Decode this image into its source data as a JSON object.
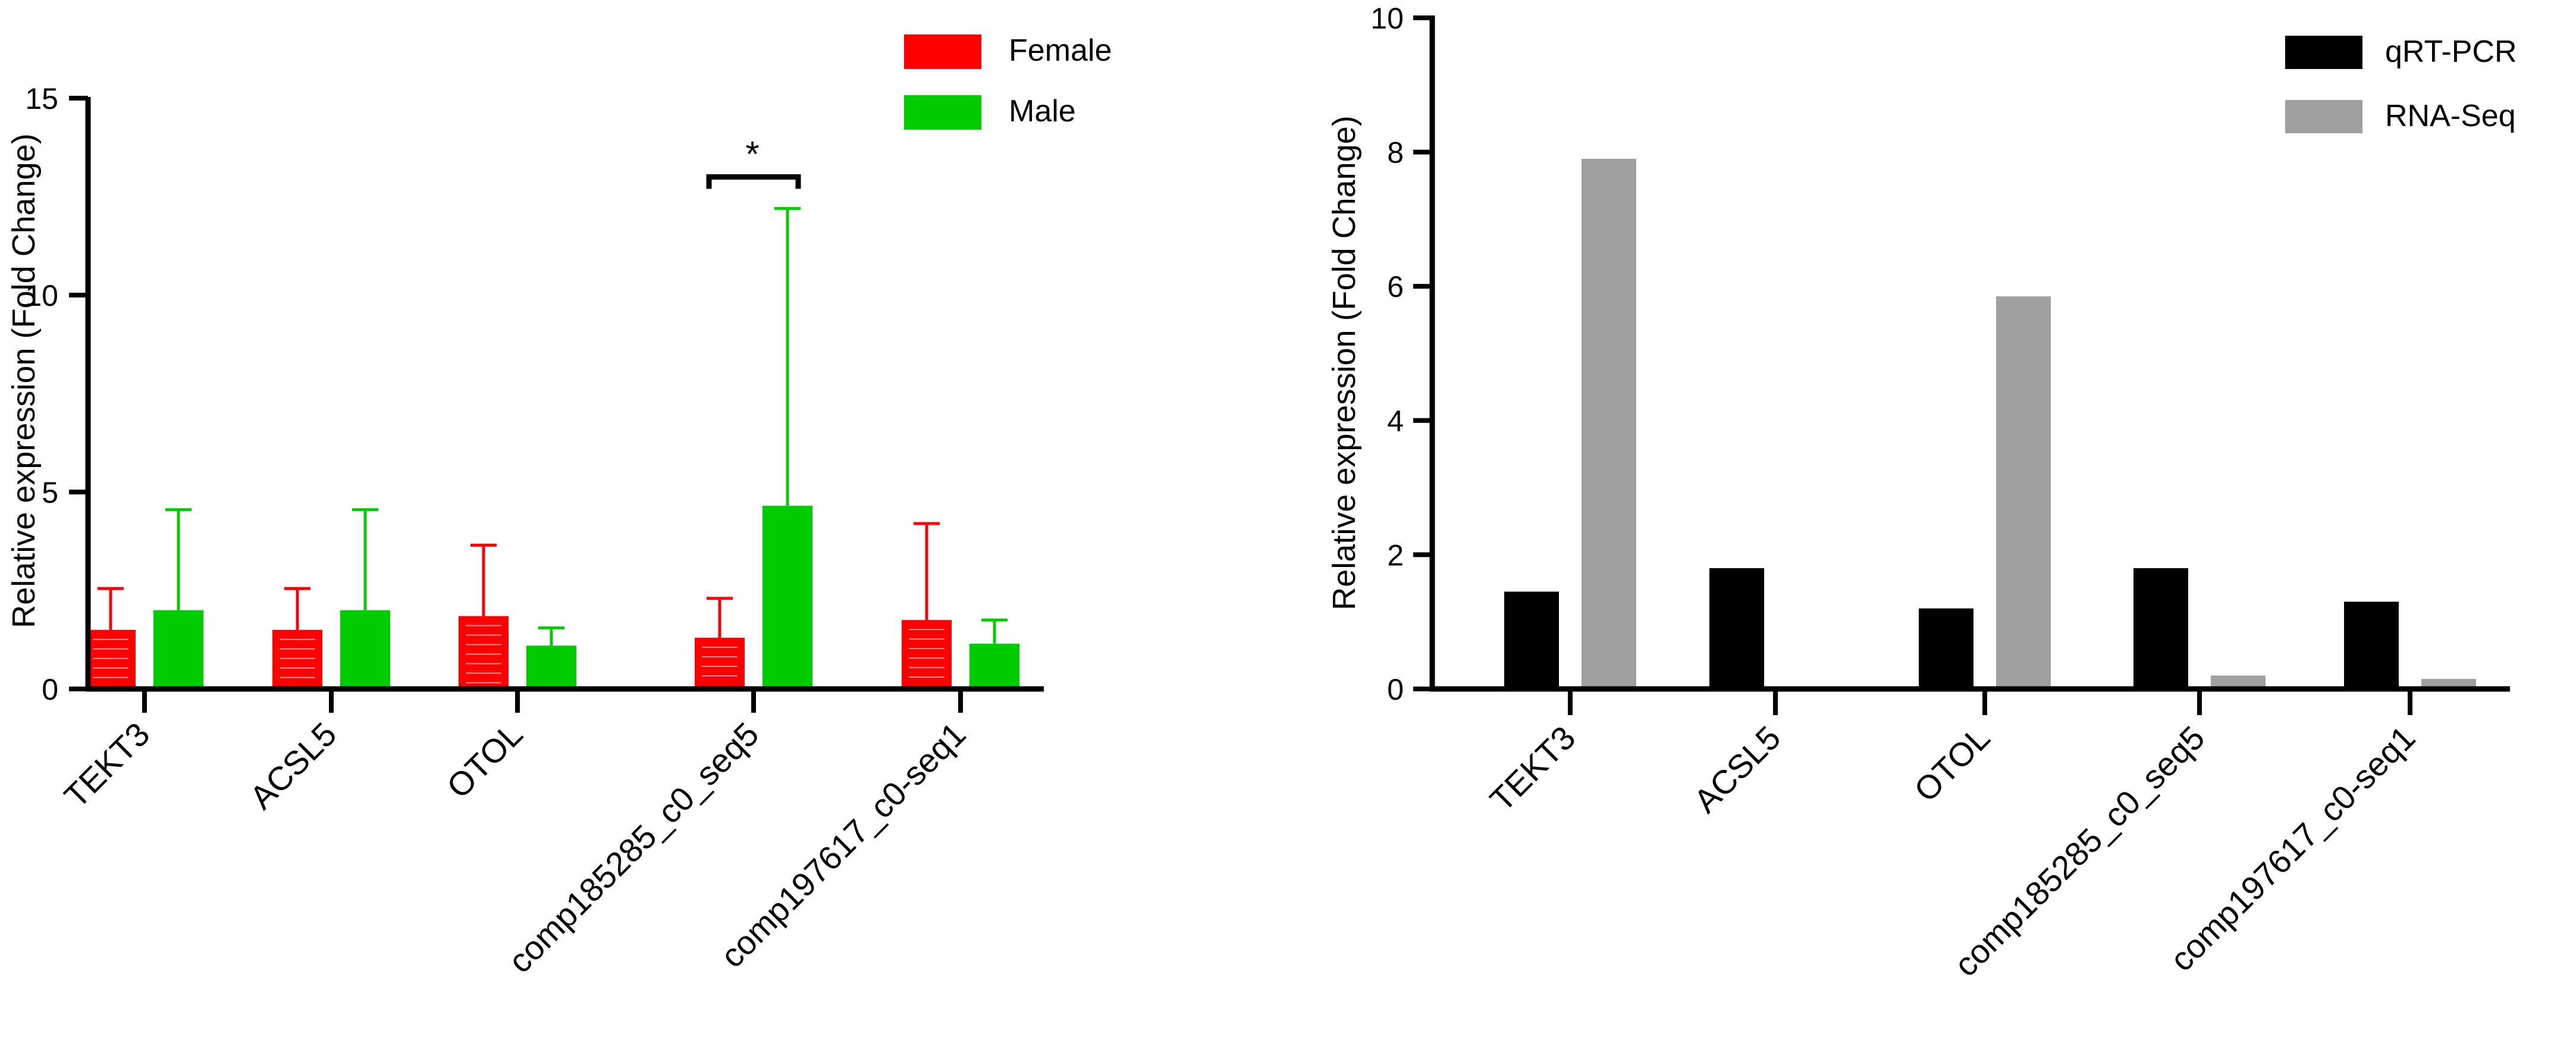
{
  "chart_data": [
    {
      "type": "bar",
      "title": "",
      "xlabel": "",
      "ylabel": "Relative expression (Fold Change)",
      "ylim": [
        0,
        15
      ],
      "yticks": [
        0,
        5,
        10,
        15
      ],
      "categories": [
        "TEKT3",
        "ACSL5",
        "OTOL",
        "comp185285_c0_seq5",
        "comp197617_c0-seq1"
      ],
      "series": [
        {
          "name": "Female",
          "color": "#ff0000",
          "values": [
            1.5,
            1.5,
            1.85,
            1.3,
            1.75
          ],
          "error_upper": [
            2.55,
            2.55,
            3.65,
            2.3,
            4.2
          ]
        },
        {
          "name": "Male",
          "color": "#00cc00",
          "values": [
            2.0,
            2.0,
            1.1,
            4.65,
            1.15
          ],
          "error_upper": [
            4.55,
            4.55,
            1.55,
            12.2,
            1.75
          ]
        }
      ],
      "significance": [
        {
          "category": "comp185285_c0_seq5",
          "label": "*",
          "y": 13.0
        }
      ],
      "legend": {
        "position": "top-right",
        "labels": [
          "Female",
          "Male"
        ]
      }
    },
    {
      "type": "bar",
      "title": "",
      "xlabel": "",
      "ylabel": "Relative expression (Fold Change)",
      "ylim": [
        0,
        10
      ],
      "yticks": [
        0,
        2,
        4,
        6,
        8,
        10
      ],
      "categories": [
        "TEKT3",
        "ACSL5",
        "OTOL",
        "comp185285_c0_seq5",
        "comp197617_c0-seq1"
      ],
      "series": [
        {
          "name": "qRT-PCR",
          "color": "#000000",
          "values": [
            1.45,
            1.8,
            1.2,
            1.8,
            1.3
          ]
        },
        {
          "name": "RNA-Seq",
          "color": "#a0a0a0",
          "values": [
            7.9,
            0,
            5.85,
            0.2,
            0.15
          ]
        }
      ],
      "legend": {
        "position": "top-right",
        "labels": [
          "qRT-PCR",
          "RNA-Seq"
        ]
      }
    }
  ]
}
